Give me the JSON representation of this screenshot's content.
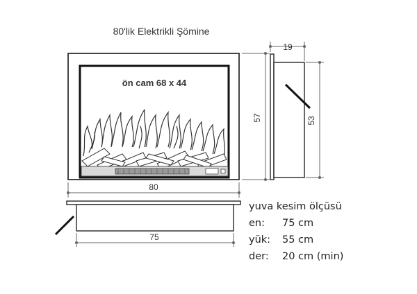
{
  "title": "80'lik Elektrikli Şömine",
  "front": {
    "glass_label": "ön cam 68 x 44",
    "width": "80",
    "height": "57"
  },
  "side": {
    "depth": "19",
    "height": "53"
  },
  "cutout": {
    "width": "75"
  },
  "specs": {
    "heading": "yuva kesim ölçüsü",
    "rows": [
      {
        "label": "en:",
        "value": "75 cm"
      },
      {
        "label": "yük:",
        "value": "55 cm"
      },
      {
        "label": "der:",
        "value": "20 cm (min)"
      }
    ]
  }
}
